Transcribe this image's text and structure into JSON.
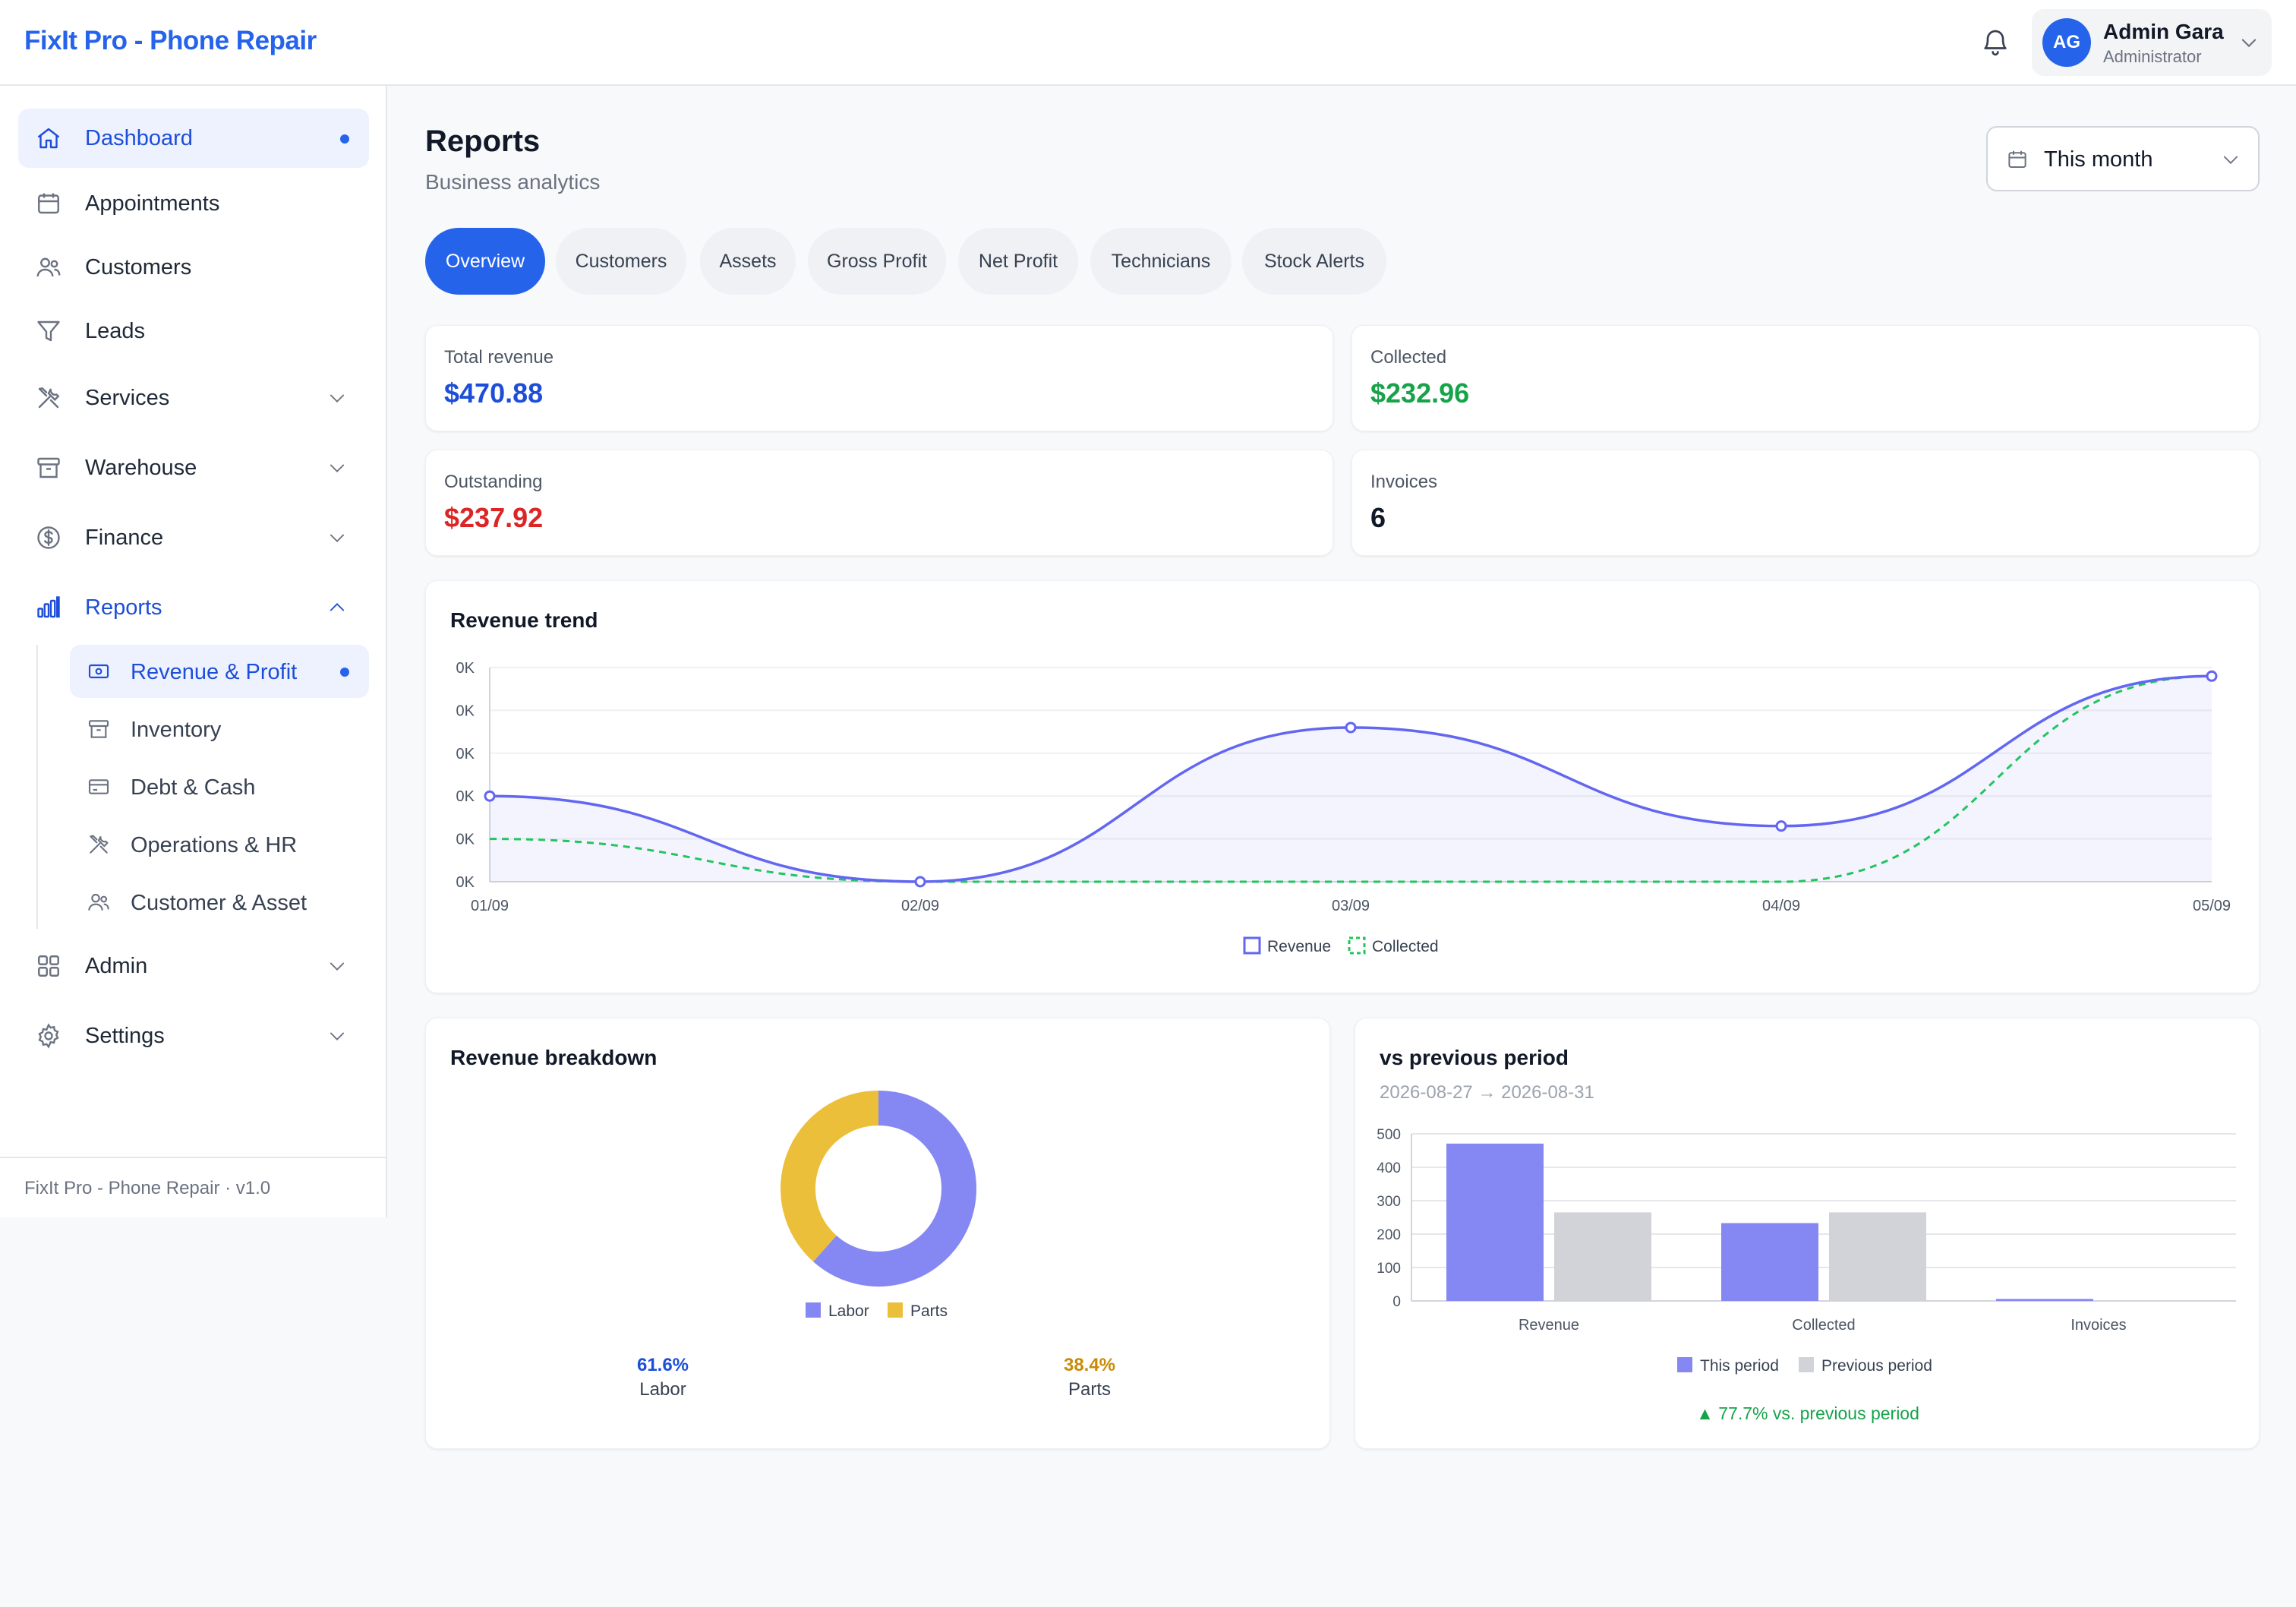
{
  "app": {
    "brand": "FixIt Pro - Phone Repair"
  },
  "user": {
    "initials": "AG",
    "name": "Admin Gara",
    "role": "Administrator"
  },
  "sidebar": {
    "items": [
      {
        "label": "Dashboard",
        "icon": "home-icon"
      },
      {
        "label": "Appointments",
        "icon": "calendar-icon"
      },
      {
        "label": "Customers",
        "icon": "users-icon"
      },
      {
        "label": "Leads",
        "icon": "funnel-icon"
      },
      {
        "label": "Services",
        "icon": "tools-icon"
      },
      {
        "label": "Warehouse",
        "icon": "archive-icon"
      },
      {
        "label": "Finance",
        "icon": "dollar-icon"
      },
      {
        "label": "Reports",
        "icon": "bar-chart-icon"
      },
      {
        "label": "Admin",
        "icon": "grid-icon"
      },
      {
        "label": "Settings",
        "icon": "gear-icon"
      }
    ],
    "report_subitems": [
      {
        "label": "Revenue & Profit",
        "icon": "money-icon"
      },
      {
        "label": "Inventory",
        "icon": "archive-icon"
      },
      {
        "label": "Debt & Cash",
        "icon": "card-icon"
      },
      {
        "label": "Operations & HR",
        "icon": "tools-icon"
      },
      {
        "label": "Customer & Asset",
        "icon": "users-icon"
      }
    ],
    "footer": "FixIt Pro - Phone Repair · v1.0"
  },
  "page": {
    "title": "Reports",
    "subtitle": "Business analytics",
    "period": "This month"
  },
  "tabs": [
    "Overview",
    "Customers",
    "Assets",
    "Gross Profit",
    "Net Profit",
    "Technicians",
    "Stock Alerts"
  ],
  "stats": {
    "total_revenue": {
      "label": "Total revenue",
      "value": "$470.88",
      "color": "#1d4ed8"
    },
    "collected": {
      "label": "Collected",
      "value": "$232.96",
      "color": "#16a34a"
    },
    "outstanding": {
      "label": "Outstanding",
      "value": "$237.92",
      "color": "#dc2626"
    },
    "invoices": {
      "label": "Invoices",
      "value": "6",
      "color": "#111827"
    }
  },
  "colors": {
    "accent": "#2563eb",
    "revenue": "#6366f1",
    "collected": "#22c55e",
    "labor": "#8588f3",
    "parts": "#ecbf3b",
    "previous": "#d1d3d8"
  },
  "chart_data": [
    {
      "type": "line",
      "title": "Revenue trend",
      "x": [
        "01/09",
        "02/09",
        "03/09",
        "04/09",
        "05/09"
      ],
      "y_ticks": [
        "0K",
        "0K",
        "0K",
        "0K",
        "0K",
        "0K"
      ],
      "ylim": [
        0,
        250
      ],
      "series": [
        {
          "name": "Revenue",
          "values": [
            100,
            0,
            180,
            65,
            240
          ]
        },
        {
          "name": "Collected",
          "values": [
            50,
            0,
            0,
            0,
            240
          ]
        }
      ],
      "legend": "bottom",
      "grid": true
    },
    {
      "type": "pie",
      "title": "Revenue breakdown",
      "labels": [
        "Labor",
        "Parts"
      ],
      "values": [
        61.6,
        38.4
      ],
      "value_labels": [
        "61.6%",
        "38.4%"
      ],
      "legend": "bottom"
    },
    {
      "type": "bar",
      "title": "vs previous period",
      "subtitle": "2026-08-27 → 2026-08-31",
      "categories": [
        "Revenue",
        "Collected",
        "Invoices"
      ],
      "series": [
        {
          "name": "This period",
          "values": [
            470.88,
            232.96,
            6
          ]
        },
        {
          "name": "Previous period",
          "values": [
            265,
            265,
            0
          ]
        }
      ],
      "ylim": [
        0,
        500
      ],
      "y_ticks": [
        0,
        100,
        200,
        300,
        400,
        500
      ],
      "legend": "bottom",
      "grid": true,
      "change_note": "▲ 77.7% vs. previous period"
    }
  ]
}
